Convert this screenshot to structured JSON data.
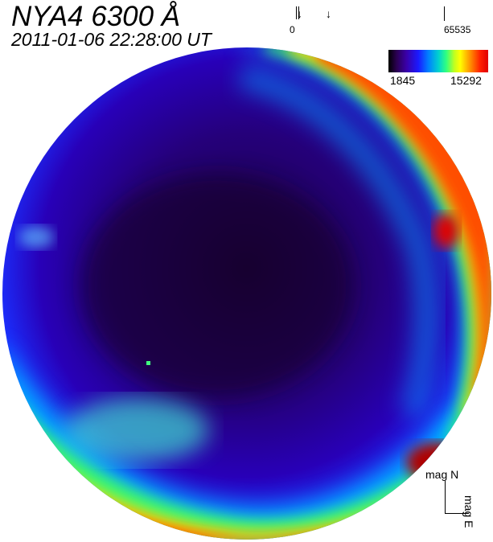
{
  "header": {
    "title": "NYA4 6300 Å",
    "timestamp": "2011-01-06 22:28:00 UT"
  },
  "scale": {
    "left_label": "0",
    "right_label": "65535"
  },
  "colorbar": {
    "min_label": "1845",
    "max_label": "15292"
  },
  "orientation": {
    "north_label": "mag N",
    "east_label": "mag E"
  }
}
